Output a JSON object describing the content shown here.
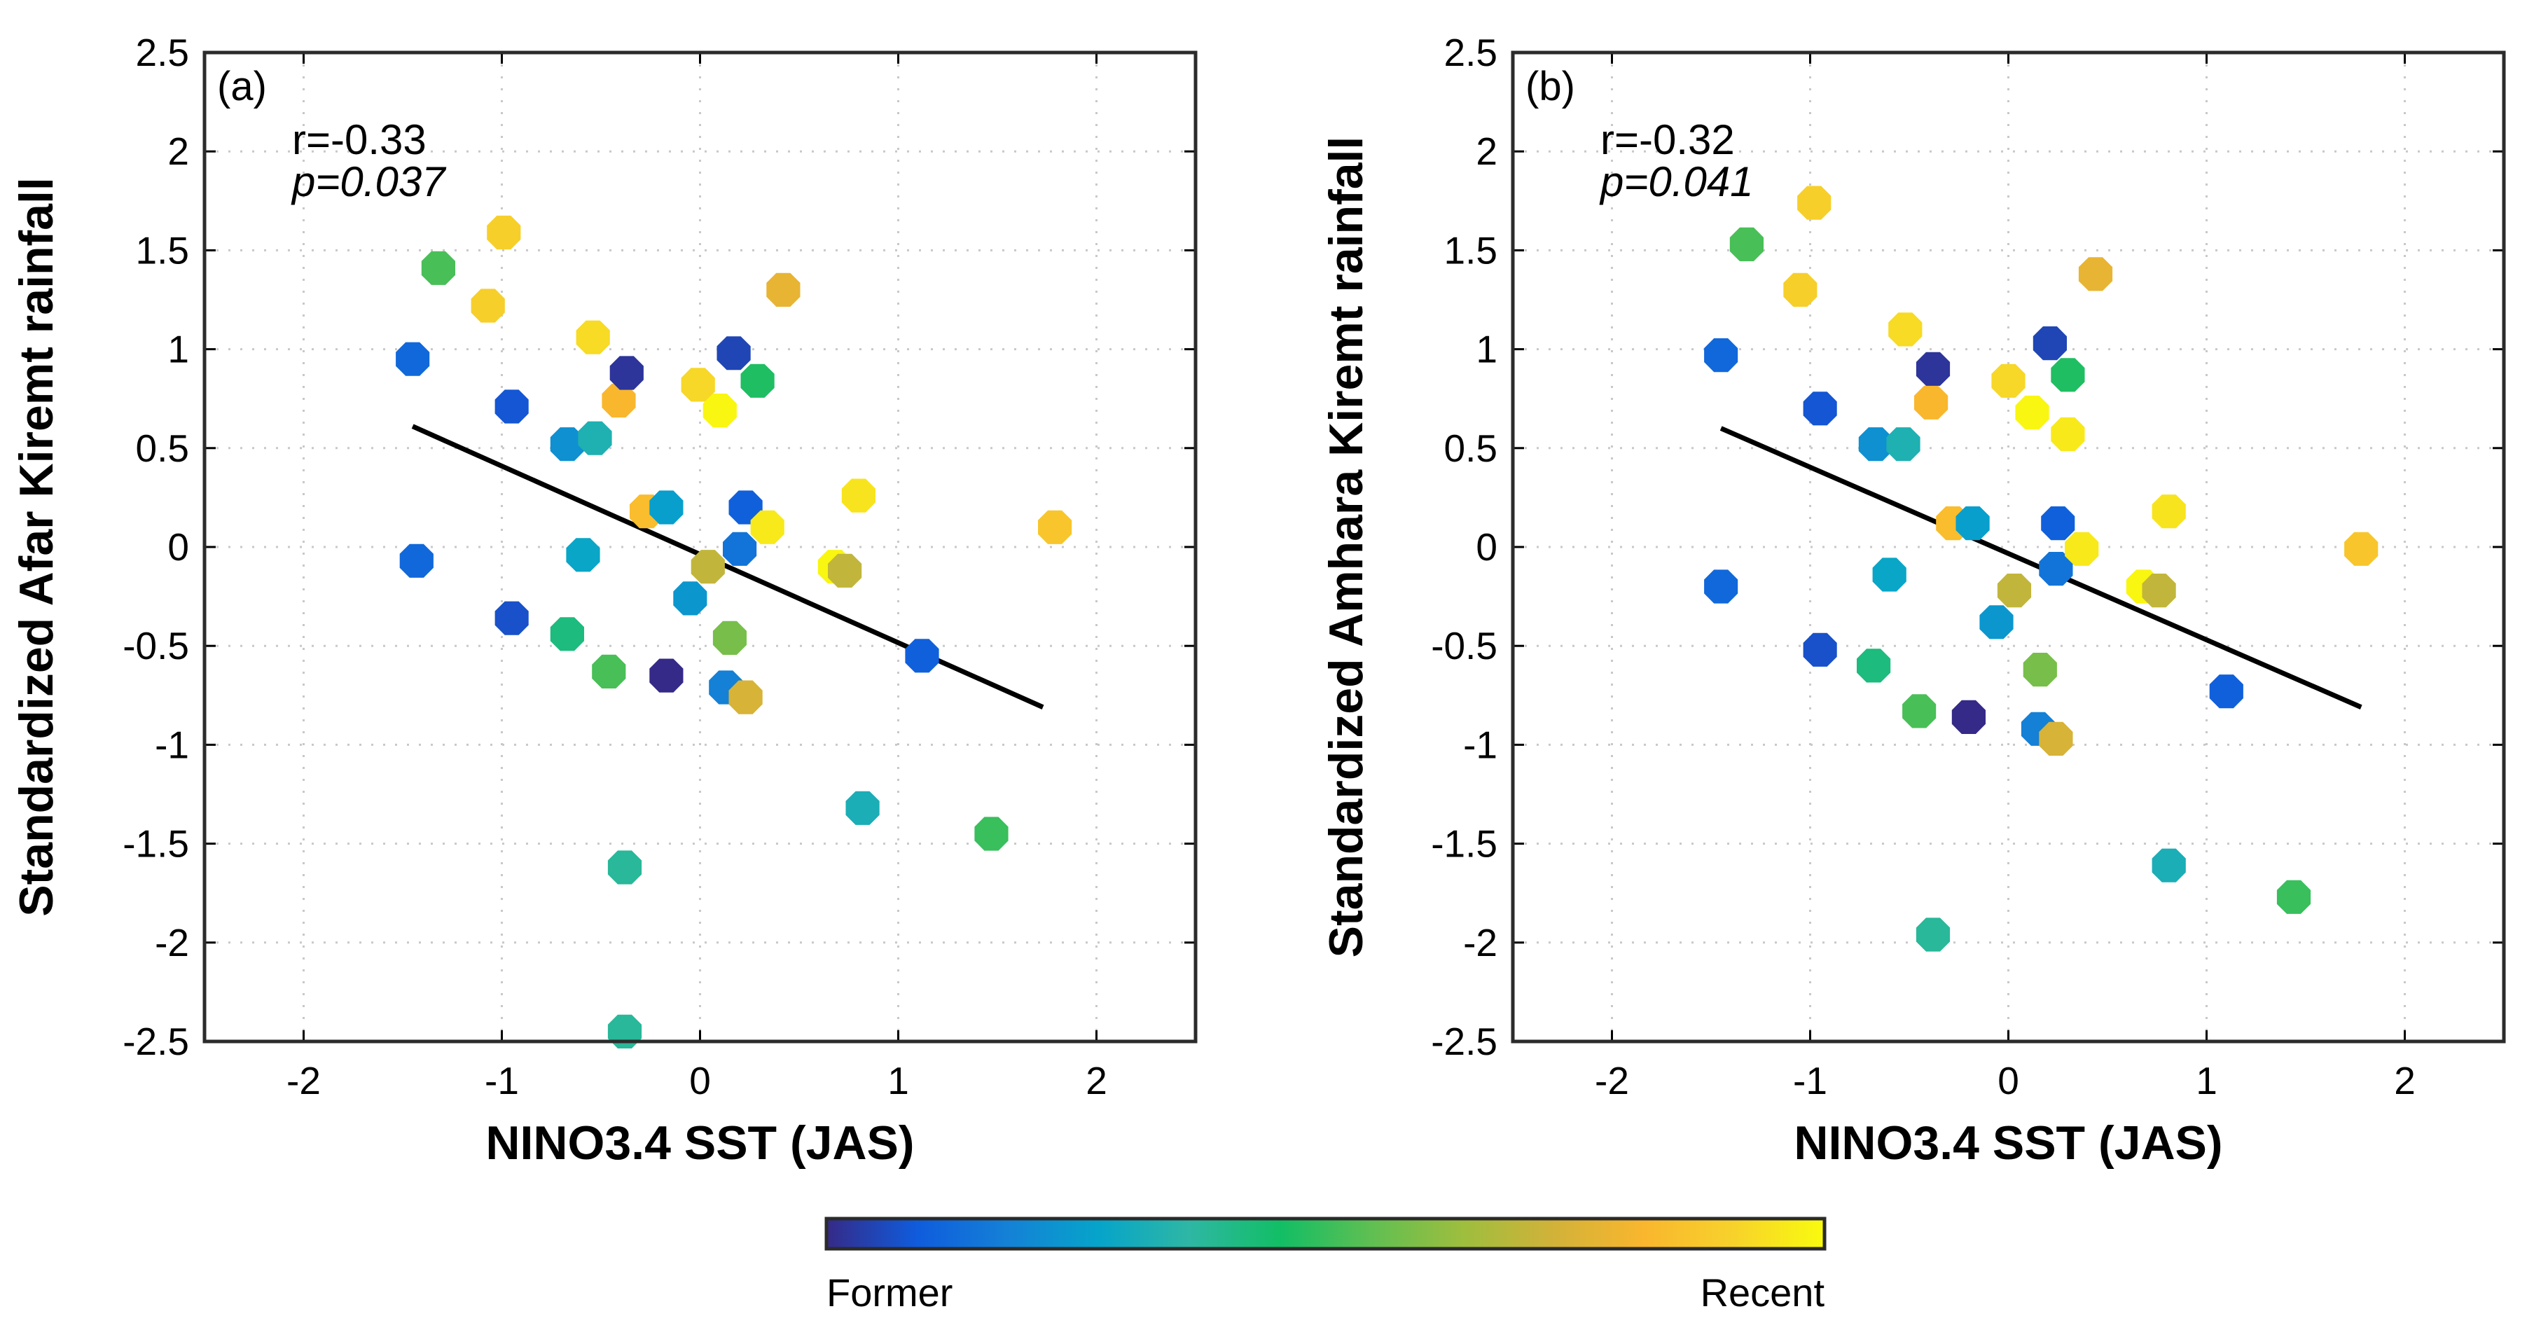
{
  "chart_data": [
    {
      "type": "scatter",
      "panel_label": "(a)",
      "ylabel": "Standardized Afar Kiremt rainfall",
      "xlabel": "NINO3.4 SST (JAS)",
      "xlim": [
        -2.5,
        2.5
      ],
      "ylim": [
        -2.5,
        2.5
      ],
      "xticks": [
        -2,
        -1,
        0,
        1,
        2
      ],
      "yticks": [
        2.5,
        2,
        1.5,
        1,
        0.5,
        0,
        -0.5,
        -1,
        -1.5,
        -2,
        -2.5
      ],
      "grid": true,
      "stat_r": "r=-0.33",
      "stat_p": "p=0.037",
      "trend": {
        "x": [
          -1.45,
          1.73
        ],
        "y": [
          0.61,
          -0.81
        ]
      },
      "points": [
        {
          "x": -1.45,
          "y": 0.95,
          "c": 0.12
        },
        {
          "x": -1.43,
          "y": -0.07,
          "c": 0.12
        },
        {
          "x": -1.32,
          "y": 1.41,
          "c": 0.52
        },
        {
          "x": -1.07,
          "y": 1.22,
          "c": 0.9
        },
        {
          "x": -0.99,
          "y": 1.59,
          "c": 0.9
        },
        {
          "x": -0.95,
          "y": 0.71,
          "c": 0.08
        },
        {
          "x": -0.95,
          "y": -0.36,
          "c": 0.07
        },
        {
          "x": -0.67,
          "y": 0.52,
          "c": 0.22
        },
        {
          "x": -0.67,
          "y": -0.44,
          "c": 0.42
        },
        {
          "x": -0.59,
          "y": -0.04,
          "c": 0.28
        },
        {
          "x": -0.53,
          "y": 0.55,
          "c": 0.33
        },
        {
          "x": -0.54,
          "y": 1.06,
          "c": 0.93
        },
        {
          "x": -0.46,
          "y": -0.63,
          "c": 0.52
        },
        {
          "x": -0.41,
          "y": 0.74,
          "c": 0.82
        },
        {
          "x": -0.37,
          "y": 0.88,
          "c": 0.02
        },
        {
          "x": -0.38,
          "y": -1.62,
          "c": 0.38
        },
        {
          "x": -0.38,
          "y": -2.45,
          "c": 0.38
        },
        {
          "x": -0.27,
          "y": 0.18,
          "c": 0.84
        },
        {
          "x": -0.17,
          "y": 0.2,
          "c": 0.26
        },
        {
          "x": -0.17,
          "y": -0.65,
          "c": 0.0
        },
        {
          "x": -0.05,
          "y": -0.26,
          "c": 0.24
        },
        {
          "x": -0.01,
          "y": 0.82,
          "c": 0.92
        },
        {
          "x": 0.04,
          "y": -0.1,
          "c": 0.7
        },
        {
          "x": 0.1,
          "y": 0.69,
          "c": 0.99
        },
        {
          "x": 0.13,
          "y": -0.71,
          "c": 0.18
        },
        {
          "x": 0.15,
          "y": -0.46,
          "c": 0.58
        },
        {
          "x": 0.17,
          "y": 0.98,
          "c": 0.05
        },
        {
          "x": 0.2,
          "y": -0.01,
          "c": 0.15
        },
        {
          "x": 0.23,
          "y": 0.2,
          "c": 0.1
        },
        {
          "x": 0.23,
          "y": -0.76,
          "c": 0.74
        },
        {
          "x": 0.29,
          "y": 0.84,
          "c": 0.47
        },
        {
          "x": 0.34,
          "y": 0.1,
          "c": 0.96
        },
        {
          "x": 0.42,
          "y": 1.3,
          "c": 0.78
        },
        {
          "x": 0.68,
          "y": -0.1,
          "c": 0.99
        },
        {
          "x": 0.73,
          "y": -0.12,
          "c": 0.7
        },
        {
          "x": 0.8,
          "y": 0.26,
          "c": 0.95
        },
        {
          "x": 0.82,
          "y": -1.32,
          "c": 0.32
        },
        {
          "x": 1.12,
          "y": -0.55,
          "c": 0.1
        },
        {
          "x": 1.47,
          "y": -1.45,
          "c": 0.5
        },
        {
          "x": 1.79,
          "y": 0.1,
          "c": 0.87
        }
      ]
    },
    {
      "type": "scatter",
      "panel_label": "(b)",
      "ylabel": "Standardized Amhara Kiremt rainfall",
      "xlabel": "NINO3.4 SST (JAS)",
      "xlim": [
        -2.5,
        2.5
      ],
      "ylim": [
        -2.5,
        2.5
      ],
      "xticks": [
        -2,
        -1,
        0,
        1,
        2
      ],
      "yticks": [
        2.5,
        2,
        1.5,
        1,
        0.5,
        0,
        -0.5,
        -1,
        -1.5,
        -2,
        -2.5
      ],
      "grid": true,
      "stat_r": "r=-0.32",
      "stat_p": "p=0.041",
      "trend": {
        "x": [
          -1.45,
          1.78
        ],
        "y": [
          0.6,
          -0.81
        ]
      },
      "points": [
        {
          "x": -1.45,
          "y": 0.97,
          "c": 0.12
        },
        {
          "x": -1.45,
          "y": -0.2,
          "c": 0.12
        },
        {
          "x": -1.32,
          "y": 1.53,
          "c": 0.52
        },
        {
          "x": -1.05,
          "y": 1.3,
          "c": 0.9
        },
        {
          "x": -0.98,
          "y": 1.74,
          "c": 0.9
        },
        {
          "x": -0.95,
          "y": 0.7,
          "c": 0.08
        },
        {
          "x": -0.95,
          "y": -0.52,
          "c": 0.07
        },
        {
          "x": -0.67,
          "y": 0.52,
          "c": 0.22
        },
        {
          "x": -0.68,
          "y": -0.6,
          "c": 0.42
        },
        {
          "x": -0.6,
          "y": -0.14,
          "c": 0.28
        },
        {
          "x": -0.53,
          "y": 0.52,
          "c": 0.33
        },
        {
          "x": -0.52,
          "y": 1.1,
          "c": 0.93
        },
        {
          "x": -0.45,
          "y": -0.83,
          "c": 0.52
        },
        {
          "x": -0.39,
          "y": 0.73,
          "c": 0.82
        },
        {
          "x": -0.38,
          "y": 0.9,
          "c": 0.02
        },
        {
          "x": -0.38,
          "y": -1.96,
          "c": 0.38
        },
        {
          "x": -0.28,
          "y": 0.12,
          "c": 0.84
        },
        {
          "x": -0.18,
          "y": 0.12,
          "c": 0.26
        },
        {
          "x": -0.2,
          "y": -0.86,
          "c": 0.0
        },
        {
          "x": -0.06,
          "y": -0.38,
          "c": 0.24
        },
        {
          "x": 0.0,
          "y": 0.84,
          "c": 0.92
        },
        {
          "x": 0.03,
          "y": -0.22,
          "c": 0.7
        },
        {
          "x": 0.12,
          "y": 0.68,
          "c": 0.99
        },
        {
          "x": 0.15,
          "y": -0.92,
          "c": 0.18
        },
        {
          "x": 0.16,
          "y": -0.62,
          "c": 0.58
        },
        {
          "x": 0.21,
          "y": 1.03,
          "c": 0.05
        },
        {
          "x": 0.24,
          "y": -0.11,
          "c": 0.15
        },
        {
          "x": 0.25,
          "y": 0.12,
          "c": 0.1
        },
        {
          "x": 0.24,
          "y": -0.97,
          "c": 0.74
        },
        {
          "x": 0.3,
          "y": 0.87,
          "c": 0.47
        },
        {
          "x": 0.3,
          "y": 0.57,
          "c": 0.96
        },
        {
          "x": 0.37,
          "y": -0.01,
          "c": 0.96
        },
        {
          "x": 0.44,
          "y": 1.38,
          "c": 0.78
        },
        {
          "x": 0.68,
          "y": -0.2,
          "c": 0.99
        },
        {
          "x": 0.76,
          "y": -0.22,
          "c": 0.7
        },
        {
          "x": 0.81,
          "y": 0.18,
          "c": 0.95
        },
        {
          "x": 0.81,
          "y": -1.61,
          "c": 0.32
        },
        {
          "x": 1.1,
          "y": -0.73,
          "c": 0.1
        },
        {
          "x": 1.44,
          "y": -1.77,
          "c": 0.5
        },
        {
          "x": 1.78,
          "y": -0.01,
          "c": 0.87
        }
      ]
    }
  ],
  "colorbar": {
    "label_min": "Former",
    "label_max": "Recent",
    "colors": [
      "#352a87",
      "#0f5cdd",
      "#1481d6",
      "#06a4ca",
      "#2eb7a4",
      "#12be65",
      "#5fbf52",
      "#9dbe3e",
      "#d1b239",
      "#f9b62e",
      "#f7d22b",
      "#f9fb0e"
    ]
  }
}
